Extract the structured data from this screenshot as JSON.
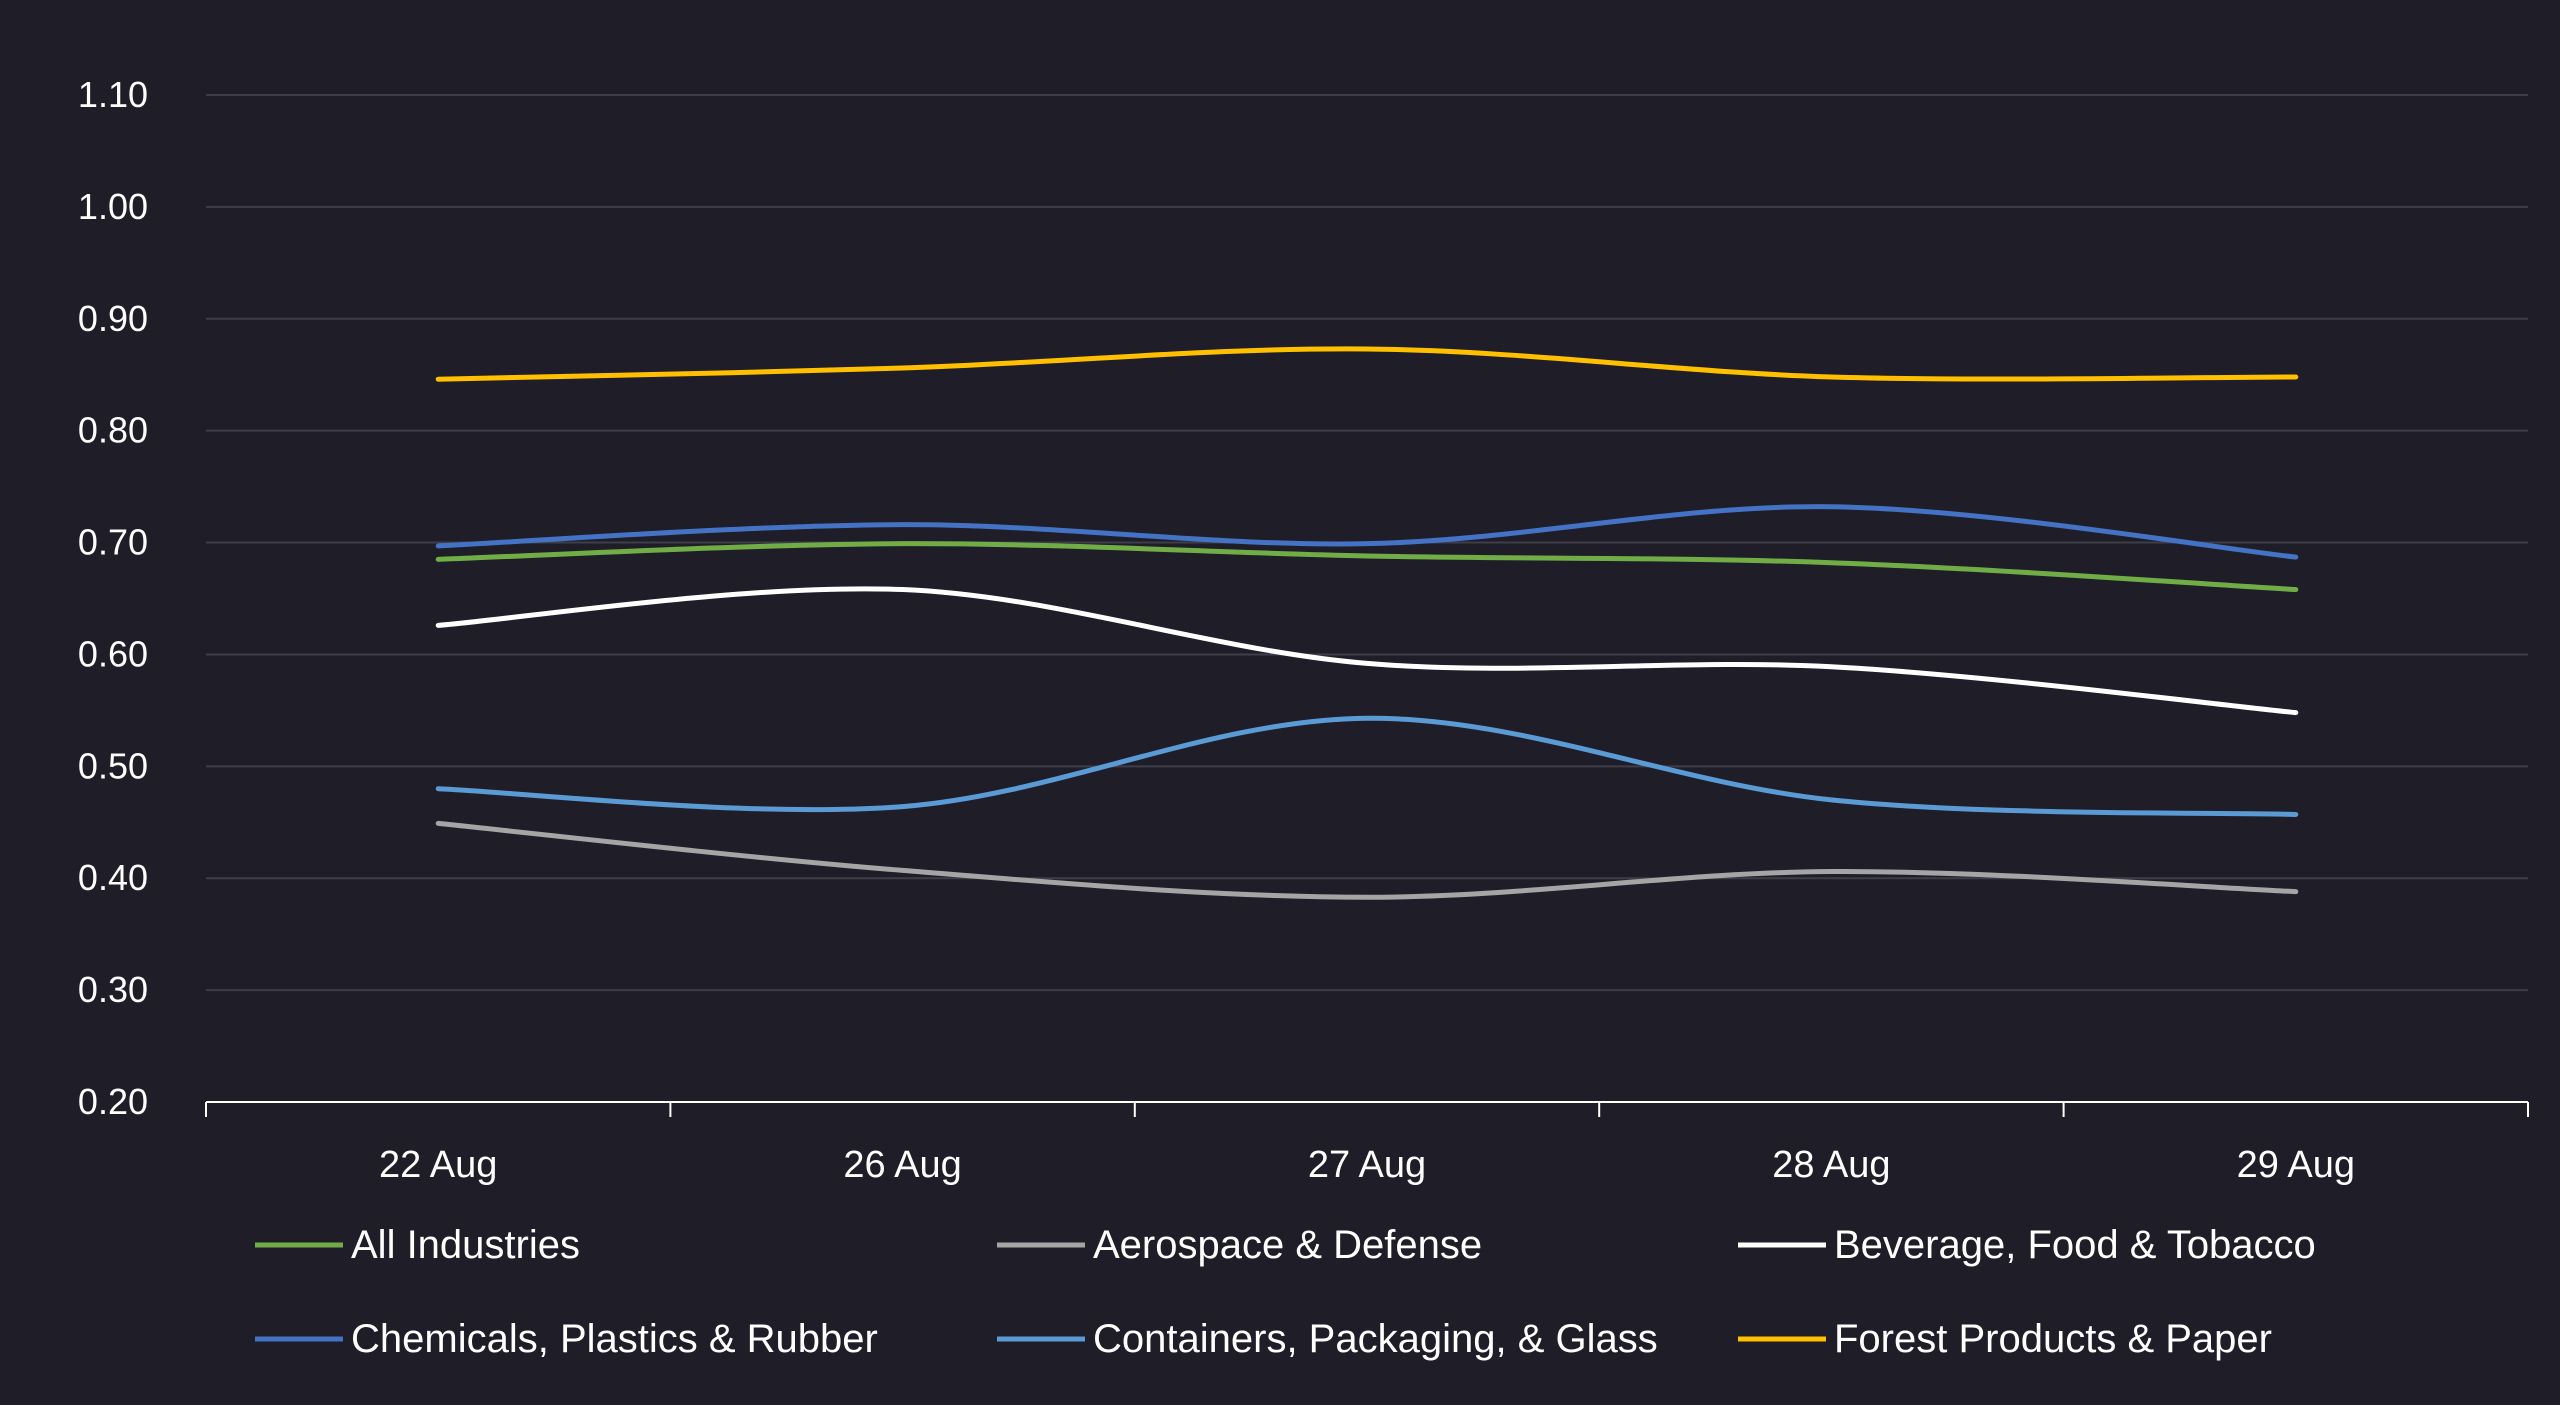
{
  "chart_data": {
    "type": "line",
    "title": "",
    "xlabel": "",
    "ylabel": "",
    "categories": [
      "22 Aug",
      "26 Aug",
      "27 Aug",
      "28 Aug",
      "29 Aug"
    ],
    "ylim": [
      0.2,
      1.1
    ],
    "yticks": [
      "0.20",
      "0.30",
      "0.40",
      "0.50",
      "0.60",
      "0.70",
      "0.80",
      "0.90",
      "1.00",
      "1.10"
    ],
    "grid": true,
    "legend_position": "bottom",
    "series": [
      {
        "name": "All Industries",
        "color": "#70ad47",
        "values": [
          0.685,
          0.699,
          0.688,
          0.682,
          0.658
        ]
      },
      {
        "name": "Aerospace & Defense",
        "color": "#a5a5a5",
        "values": [
          0.449,
          0.407,
          0.383,
          0.406,
          0.388
        ]
      },
      {
        "name": "Beverage, Food & Tobacco",
        "color": "#ffffff",
        "values": [
          0.626,
          0.658,
          0.592,
          0.589,
          0.548
        ]
      },
      {
        "name": "Chemicals, Plastics & Rubber",
        "color": "#4472c4",
        "values": [
          0.697,
          0.716,
          0.699,
          0.732,
          0.687
        ]
      },
      {
        "name": "Containers, Packaging, & Glass",
        "color": "#5b9bd5",
        "values": [
          0.48,
          0.464,
          0.543,
          0.47,
          0.457
        ]
      },
      {
        "name": "Forest Products & Paper",
        "color": "#ffc000",
        "values": [
          0.846,
          0.856,
          0.873,
          0.848,
          0.848
        ]
      }
    ]
  }
}
